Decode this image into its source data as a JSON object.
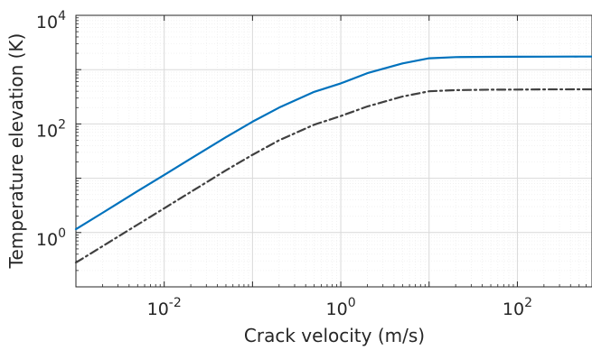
{
  "chart_data": {
    "type": "line",
    "title": "",
    "xlabel": "Crack velocity (m/s)",
    "ylabel": "Temperature elevation (K)",
    "xscale": "log",
    "yscale": "log",
    "xlim": [
      0.001,
      700
    ],
    "ylim": [
      0.1,
      10000
    ],
    "grid": true,
    "grid_minor": true,
    "x_ticks": [
      {
        "base": "10",
        "exp": "-2",
        "value": 0.01
      },
      {
        "base": "10",
        "exp": "0",
        "value": 1
      },
      {
        "base": "10",
        "exp": "2",
        "value": 100
      }
    ],
    "y_ticks": [
      {
        "base": "10",
        "exp": "0",
        "value": 1
      },
      {
        "base": "10",
        "exp": "2",
        "value": 100
      },
      {
        "base": "10",
        "exp": "4",
        "value": 10000
      }
    ],
    "series": [
      {
        "style": "solid",
        "color": "#0072bd",
        "x": [
          0.001,
          0.002,
          0.005,
          0.01,
          0.02,
          0.05,
          0.1,
          0.2,
          0.5,
          1,
          2,
          5,
          10,
          20,
          50,
          100,
          200,
          500,
          700
        ],
        "y": [
          1.15,
          2.3,
          5.8,
          11.5,
          23,
          57,
          110,
          200,
          390,
          560,
          860,
          1300,
          1620,
          1700,
          1720,
          1730,
          1735,
          1740,
          1742
        ]
      },
      {
        "style": "dashdot",
        "color": "#404040",
        "x": [
          0.001,
          0.002,
          0.005,
          0.01,
          0.02,
          0.05,
          0.1,
          0.2,
          0.5,
          1,
          2,
          5,
          10,
          20,
          50,
          100,
          200,
          500,
          700
        ],
        "y": [
          0.28,
          0.56,
          1.4,
          2.8,
          5.6,
          14,
          27,
          50,
          97,
          140,
          210,
          320,
          400,
          420,
          428,
          430,
          432,
          434,
          435
        ]
      }
    ]
  }
}
